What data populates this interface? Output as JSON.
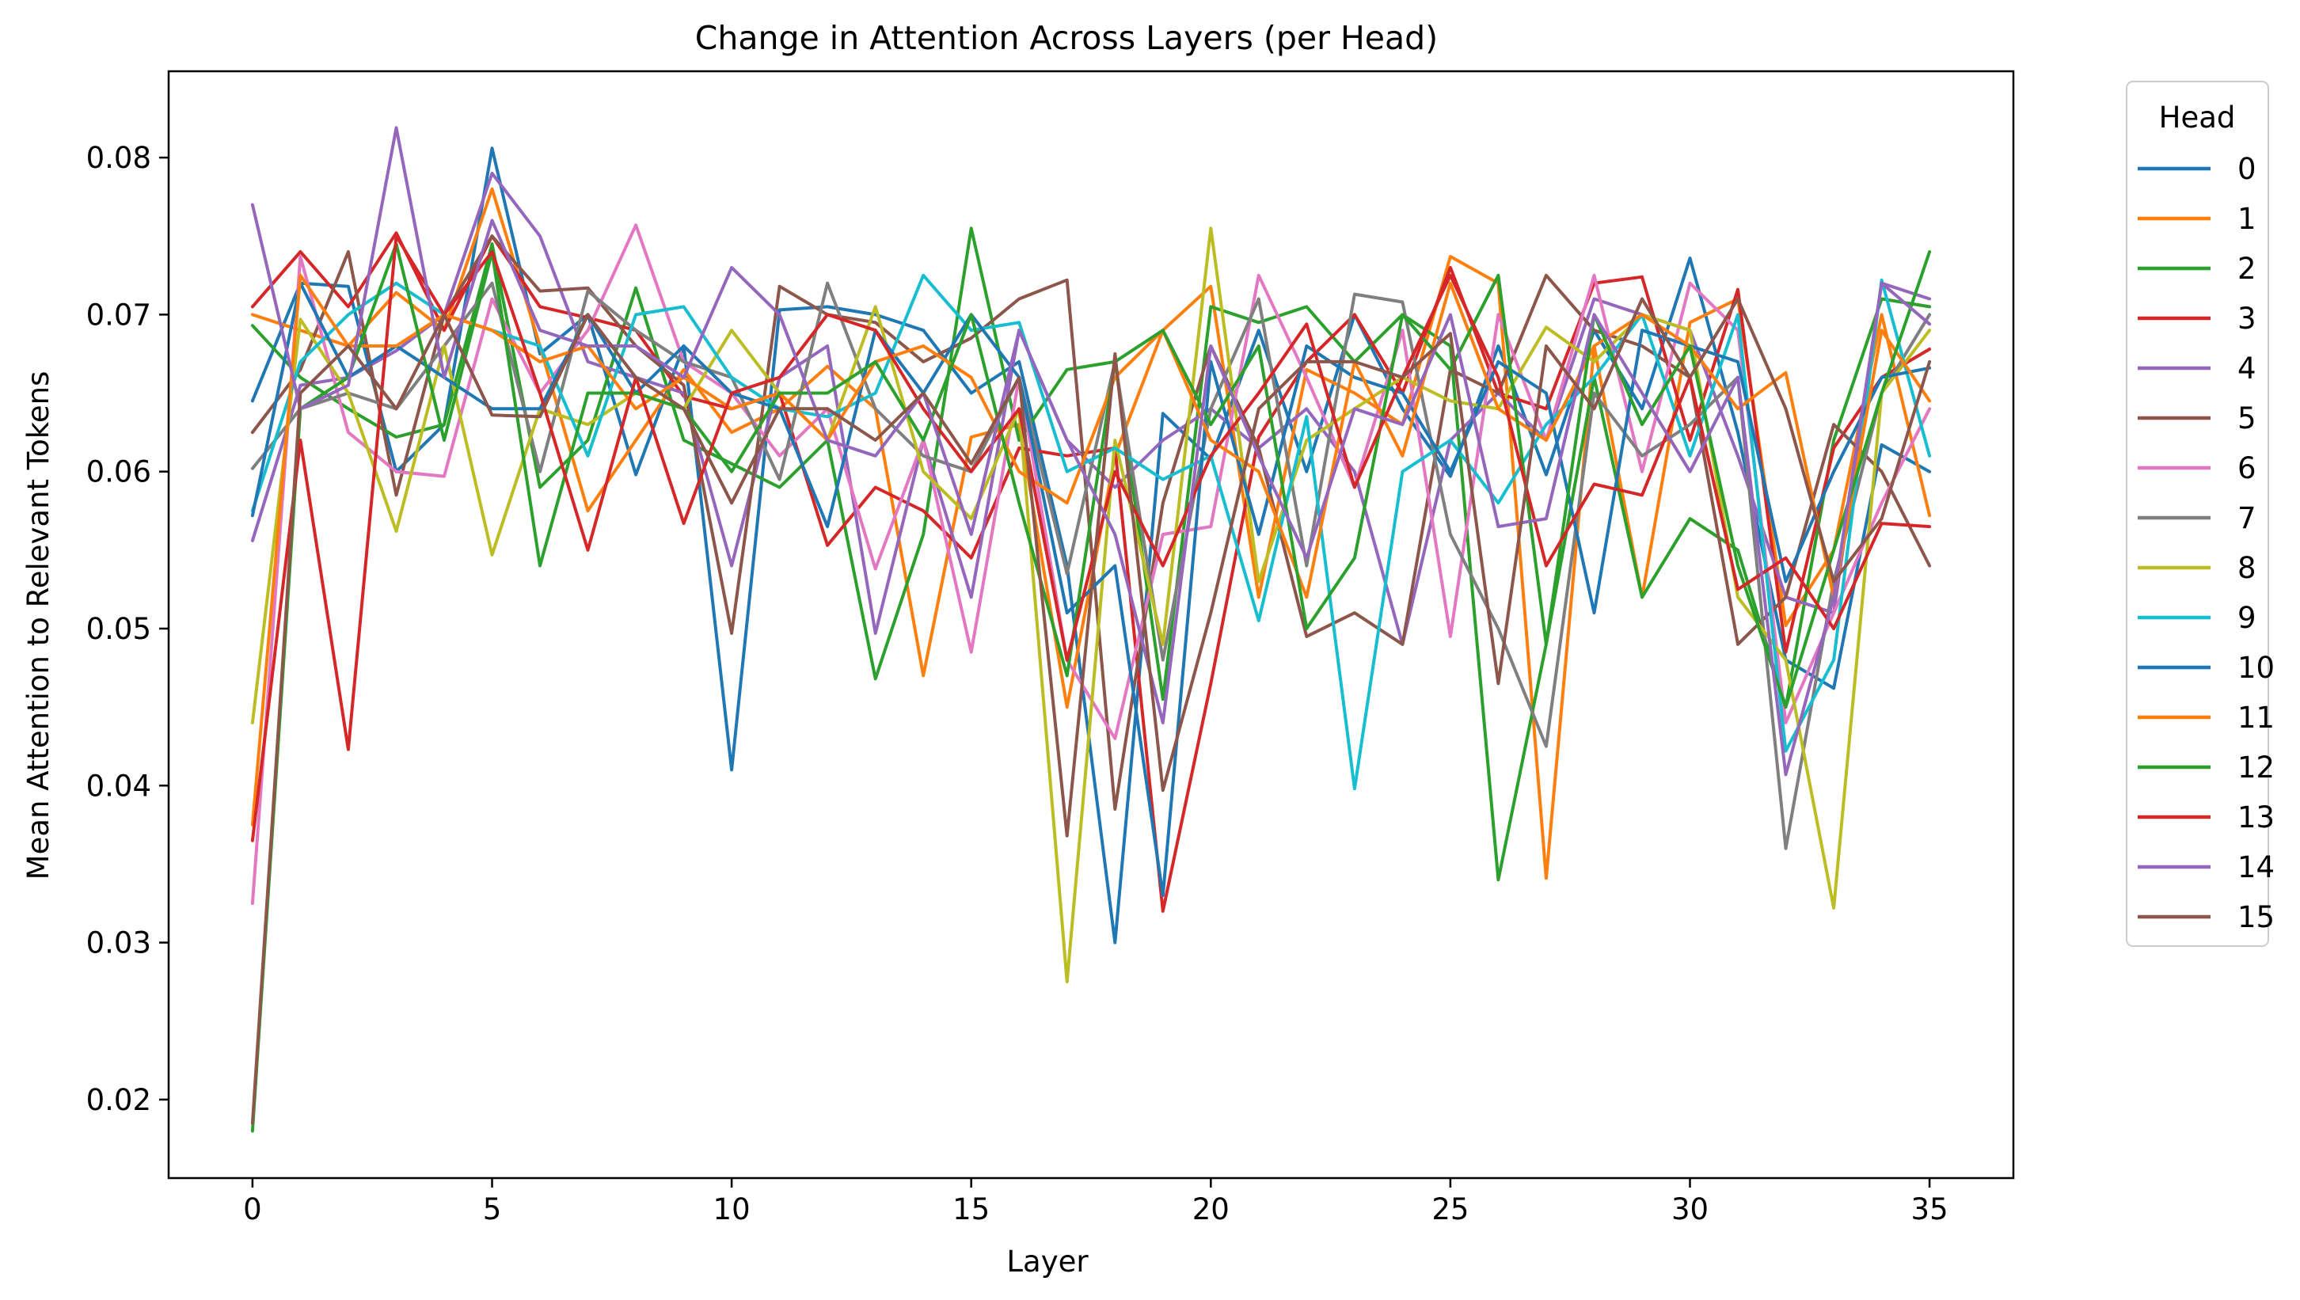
{
  "chart_data": {
    "type": "line",
    "title": "Change in Attention Across Layers (per Head)",
    "xlabel": "Layer",
    "ylabel": "Mean Attention to Relevant Tokens",
    "xlim": [
      -1.75,
      36.75
    ],
    "ylim": [
      0.015,
      0.0855
    ],
    "xticks": [
      0,
      5,
      10,
      15,
      20,
      25,
      30,
      35
    ],
    "xtick_labels": [
      "0",
      "5",
      "10",
      "15",
      "20",
      "25",
      "30",
      "35"
    ],
    "yticks": [
      0.02,
      0.03,
      0.04,
      0.05,
      0.06,
      0.07,
      0.08
    ],
    "ytick_labels": [
      "0.02",
      "0.03",
      "0.04",
      "0.05",
      "0.06",
      "0.07",
      "0.08"
    ],
    "grid": false,
    "legend": {
      "title": "Head",
      "placement": "outside-right-top"
    },
    "x": [
      0,
      1,
      2,
      3,
      4,
      5,
      6,
      7,
      8,
      9,
      10,
      11,
      12,
      13,
      14,
      15,
      16,
      17,
      18,
      19,
      20,
      21,
      22,
      23,
      24,
      25,
      26,
      27,
      28,
      29,
      30,
      31,
      32,
      33,
      34,
      35
    ],
    "series": [
      {
        "name": "0",
        "color": "#1f77b4",
        "values": [
          0.0645,
          0.072,
          0.0718,
          0.06,
          0.063,
          0.0806,
          0.0675,
          0.07,
          0.0598,
          0.068,
          0.041,
          0.0703,
          0.0705,
          0.07,
          0.069,
          0.065,
          0.067,
          0.054,
          0.03,
          0.0637,
          0.0608,
          0.069,
          0.06,
          0.07,
          0.064,
          0.0597,
          0.068,
          0.0598,
          0.069,
          0.064,
          0.0736,
          0.0625,
          0.048,
          0.0462,
          0.0617,
          0.06
        ]
      },
      {
        "name": "1",
        "color": "#ff7f0e",
        "values": [
          0.07,
          0.069,
          0.068,
          0.0714,
          0.069,
          0.078,
          0.068,
          0.0575,
          0.062,
          0.0665,
          0.0625,
          0.064,
          0.0667,
          0.064,
          0.047,
          0.0622,
          0.063,
          0.045,
          0.061,
          0.069,
          0.0718,
          0.052,
          0.0665,
          0.065,
          0.063,
          0.0737,
          0.072,
          0.0341,
          0.068,
          0.052,
          0.0695,
          0.071,
          0.0502,
          0.055,
          0.07,
          0.0572
        ]
      },
      {
        "name": "2",
        "color": "#2ca02c",
        "values": [
          0.0693,
          0.066,
          0.064,
          0.0622,
          0.063,
          0.0745,
          0.059,
          0.062,
          0.0717,
          0.062,
          0.0605,
          0.059,
          0.062,
          0.0468,
          0.056,
          0.0755,
          0.062,
          0.0665,
          0.067,
          0.0455,
          0.0705,
          0.0695,
          0.0705,
          0.067,
          0.07,
          0.068,
          0.034,
          0.049,
          0.066,
          0.052,
          0.057,
          0.055,
          0.045,
          0.062,
          0.071,
          0.0705
        ]
      },
      {
        "name": "3",
        "color": "#d62728",
        "values": [
          0.0705,
          0.074,
          0.0705,
          0.0752,
          0.069,
          0.075,
          0.0705,
          0.0698,
          0.069,
          0.0648,
          0.064,
          0.065,
          0.0553,
          0.059,
          0.0575,
          0.0545,
          0.0615,
          0.061,
          0.0615,
          0.032,
          0.0465,
          0.0622,
          0.067,
          0.07,
          0.065,
          0.073,
          0.065,
          0.064,
          0.072,
          0.0724,
          0.062,
          0.0716,
          0.0485,
          0.0615,
          0.066,
          0.0678
        ]
      },
      {
        "name": "4",
        "color": "#9467bd",
        "values": [
          0.0556,
          0.0655,
          0.066,
          0.0677,
          0.07,
          0.079,
          0.075,
          0.067,
          0.066,
          0.065,
          0.054,
          0.066,
          0.068,
          0.0497,
          0.062,
          0.052,
          0.069,
          0.062,
          0.059,
          0.062,
          0.064,
          0.0615,
          0.064,
          0.06,
          0.049,
          0.062,
          0.065,
          0.062,
          0.071,
          0.07,
          0.069,
          0.061,
          0.052,
          0.051,
          0.072,
          0.071
        ]
      },
      {
        "name": "5",
        "color": "#8c564b",
        "values": [
          0.0625,
          0.0665,
          0.074,
          0.0585,
          0.07,
          0.075,
          0.0715,
          0.0717,
          0.068,
          0.0655,
          0.0497,
          0.0718,
          0.07,
          0.0695,
          0.067,
          0.0685,
          0.071,
          0.0722,
          0.0385,
          0.058,
          0.068,
          0.0615,
          0.0495,
          0.051,
          0.049,
          0.0665,
          0.065,
          0.0725,
          0.069,
          0.068,
          0.066,
          0.049,
          0.052,
          0.063,
          0.06,
          0.054
        ]
      },
      {
        "name": "6",
        "color": "#e377c2",
        "values": [
          0.0325,
          0.0737,
          0.0625,
          0.06,
          0.0597,
          0.071,
          0.065,
          0.069,
          0.0757,
          0.067,
          0.065,
          0.061,
          0.064,
          0.0538,
          0.062,
          0.0485,
          0.066,
          0.048,
          0.043,
          0.056,
          0.0565,
          0.0725,
          0.066,
          0.059,
          0.069,
          0.0495,
          0.07,
          0.062,
          0.0725,
          0.06,
          0.072,
          0.069,
          0.044,
          0.051,
          0.058,
          0.064
        ]
      },
      {
        "name": "7",
        "color": "#7f7f7f",
        "values": [
          0.0602,
          0.064,
          0.065,
          0.064,
          0.068,
          0.072,
          0.06,
          0.0715,
          0.069,
          0.067,
          0.066,
          0.0595,
          0.072,
          0.064,
          0.061,
          0.06,
          0.066,
          0.0535,
          0.067,
          0.048,
          0.064,
          0.071,
          0.054,
          0.0713,
          0.0708,
          0.056,
          0.05,
          0.0425,
          0.065,
          0.061,
          0.063,
          0.066,
          0.036,
          0.053,
          0.065,
          0.07
        ]
      },
      {
        "name": "8",
        "color": "#bcbd22",
        "values": [
          0.044,
          0.0697,
          0.065,
          0.0562,
          0.068,
          0.0547,
          0.064,
          0.063,
          0.065,
          0.064,
          0.069,
          0.065,
          0.062,
          0.0705,
          0.06,
          0.057,
          0.064,
          0.0275,
          0.062,
          0.049,
          0.0755,
          0.053,
          0.062,
          0.064,
          0.066,
          0.0645,
          0.064,
          0.0692,
          0.067,
          0.07,
          0.069,
          0.052,
          0.048,
          0.0322,
          0.065,
          0.069
        ]
      },
      {
        "name": "9",
        "color": "#17becf",
        "values": [
          0.0575,
          0.067,
          0.07,
          0.072,
          0.07,
          0.069,
          0.068,
          0.061,
          0.07,
          0.0705,
          0.066,
          0.064,
          0.0635,
          0.065,
          0.0725,
          0.069,
          0.0695,
          0.06,
          0.0615,
          0.0595,
          0.061,
          0.0505,
          0.0635,
          0.0398,
          0.06,
          0.062,
          0.058,
          0.063,
          0.066,
          0.07,
          0.061,
          0.07,
          0.0422,
          0.048,
          0.0722,
          0.061
        ]
      },
      {
        "name": "10",
        "color": "#1f77b4",
        "values": [
          0.0572,
          0.072,
          0.066,
          0.068,
          0.066,
          0.064,
          0.064,
          0.07,
          0.065,
          0.068,
          0.065,
          0.064,
          0.0565,
          0.069,
          0.065,
          0.07,
          0.066,
          0.051,
          0.054,
          0.033,
          0.067,
          0.056,
          0.068,
          0.066,
          0.065,
          0.06,
          0.067,
          0.065,
          0.051,
          0.069,
          0.068,
          0.067,
          0.053,
          0.06,
          0.066,
          0.0666
        ]
      },
      {
        "name": "11",
        "color": "#ff7f0e",
        "values": [
          0.0375,
          0.0725,
          0.068,
          0.068,
          0.07,
          0.069,
          0.067,
          0.068,
          0.064,
          0.066,
          0.064,
          0.065,
          0.062,
          0.067,
          0.068,
          0.066,
          0.06,
          0.058,
          0.066,
          0.069,
          0.062,
          0.06,
          0.052,
          0.067,
          0.061,
          0.072,
          0.064,
          0.062,
          0.068,
          0.07,
          0.068,
          0.064,
          0.0663,
          0.052,
          0.069,
          0.0645
        ]
      },
      {
        "name": "12",
        "color": "#2ca02c",
        "values": [
          0.018,
          0.064,
          0.066,
          0.0745,
          0.062,
          0.074,
          0.054,
          0.065,
          0.065,
          0.064,
          0.06,
          0.065,
          0.065,
          0.067,
          0.062,
          0.07,
          0.058,
          0.047,
          0.067,
          0.069,
          0.063,
          0.068,
          0.05,
          0.0545,
          0.07,
          0.0665,
          0.0725,
          0.049,
          0.07,
          0.063,
          0.068,
          0.054,
          0.045,
          0.055,
          0.065,
          0.074
        ]
      },
      {
        "name": "13",
        "color": "#d62728",
        "values": [
          0.0365,
          0.062,
          0.0423,
          0.075,
          0.07,
          0.074,
          0.065,
          0.055,
          0.066,
          0.0567,
          0.065,
          0.066,
          0.07,
          0.069,
          0.064,
          0.06,
          0.064,
          0.048,
          0.06,
          0.054,
          0.061,
          0.065,
          0.0694,
          0.059,
          0.066,
          0.0725,
          0.066,
          0.054,
          0.0592,
          0.0585,
          0.066,
          0.0525,
          0.0545,
          0.05,
          0.0567,
          0.0565
        ]
      },
      {
        "name": "14",
        "color": "#9467bd",
        "values": [
          0.077,
          0.064,
          0.0655,
          0.0819,
          0.066,
          0.076,
          0.069,
          0.068,
          0.068,
          0.066,
          0.073,
          0.07,
          0.062,
          0.061,
          0.065,
          0.056,
          0.069,
          0.062,
          0.056,
          0.044,
          0.068,
          0.061,
          0.0545,
          0.064,
          0.063,
          0.07,
          0.0565,
          0.057,
          0.07,
          0.065,
          0.06,
          0.066,
          0.0407,
          0.052,
          0.072,
          0.0694
        ]
      },
      {
        "name": "15",
        "color": "#8c564b",
        "values": [
          0.0185,
          0.065,
          0.068,
          0.064,
          0.07,
          0.0636,
          0.0635,
          0.07,
          0.066,
          0.064,
          0.058,
          0.064,
          0.064,
          0.062,
          0.065,
          0.0605,
          0.066,
          0.0368,
          0.0675,
          0.0397,
          0.051,
          0.064,
          0.067,
          0.067,
          0.066,
          0.0688,
          0.0465,
          0.068,
          0.064,
          0.071,
          0.066,
          0.071,
          0.064,
          0.053,
          0.057,
          0.067
        ]
      }
    ]
  }
}
